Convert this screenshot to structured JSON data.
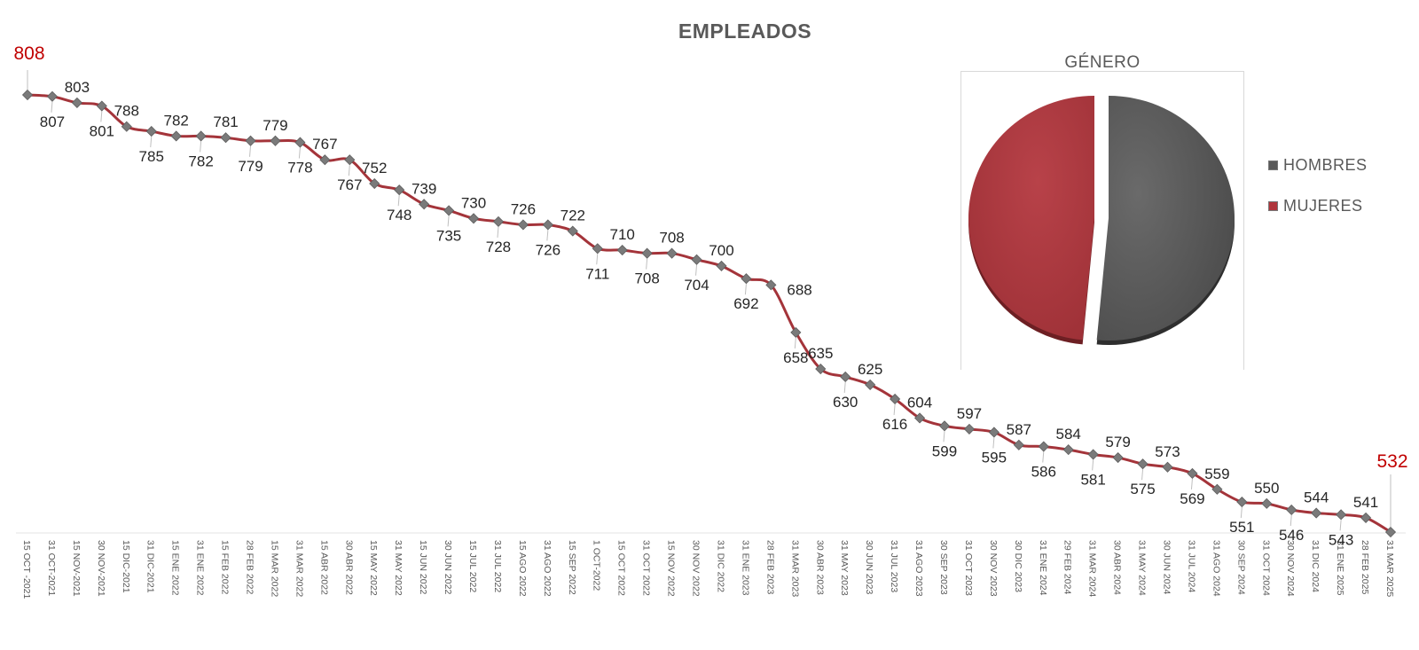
{
  "colors": {
    "line": "#a4343a",
    "marker": "#7a7a7a",
    "label": "#262626",
    "highlight": "#c00000",
    "title": "#595959",
    "hombres": "#595959",
    "mujeres": "#b0353c"
  },
  "chart_data": [
    {
      "type": "line",
      "title": "EMPLEADOS",
      "xlabel": "",
      "ylabel": "",
      "categories": [
        "15 OCT -2021",
        "31 OCT-2021",
        "15 NOV-2021",
        "30 NOV-2021",
        "15 DIC-2021",
        "31 DIC-2021",
        "15 ENE 2022",
        "31 ENE 2022",
        "15 FEB 2022",
        "28 FEB 2022",
        "15 MAR 2022",
        "31 MAR 2022",
        "15 ABR 2022",
        "30 ABR 2022",
        "15 MAY 2022",
        "31 MAY 2022",
        "15 JUN 2022",
        "30 JUN 2022",
        "15 JUL 2022",
        "31 JUL 2022",
        "15 AGO 2022",
        "31 AGO 2022",
        "15 SEP 2022",
        "1 OCT-2022",
        "15 OCT 2022",
        "31 OCT 2022",
        "15 NOV 2022",
        "30 NOV 2022",
        "31 DIC 2022",
        "31 ENE 2023",
        "28 FEB 2023",
        "31 MAR 2023",
        "30 ABR 2023",
        "31 MAY 2023",
        "30 JUN 2023",
        "31 JUL 2023",
        "31 AGO 2023",
        "30 SEP 2023",
        "31 OCT 2023",
        "30 NOV 2023",
        "30 DIC 2023",
        "31 ENE 2024",
        "29 FEB 2024",
        "31 MAR 2024",
        "30 ABR 2024",
        "31 MAY 2024",
        "30 JUN 2024",
        "31 JUL 2024",
        "31 AGO 2024",
        "30 SEP 2024",
        "31 OCT 2024",
        "30 NOV 2024",
        "31 DIC 2024",
        "31 ENE 2025",
        "28 FEB 2025",
        "31 MAR 2025"
      ],
      "series": [
        {
          "values": [
            808,
            807,
            803,
            801,
            788,
            785,
            782,
            782,
            781,
            779,
            779,
            778,
            767,
            767,
            752,
            748,
            739,
            735,
            730,
            728,
            726,
            726,
            722,
            711,
            710,
            708,
            708,
            704,
            700,
            692,
            688,
            658,
            635,
            630,
            625,
            616,
            604,
            599,
            597,
            595,
            587,
            586,
            584,
            581,
            579,
            575,
            573,
            569,
            559,
            551,
            550,
            546,
            544,
            543,
            541,
            532
          ]
        }
      ],
      "ylim": [
        530,
        810
      ],
      "grid": false,
      "legend": "none"
    },
    {
      "type": "pie",
      "title": "GÉNERO",
      "labels": [
        "HOMBRES",
        "MUJERES"
      ],
      "values": [
        51.5,
        48.5
      ],
      "legend": "right"
    }
  ],
  "titles": {
    "main": "EMPLEADOS",
    "pie": "GÉNERO"
  },
  "legend": [
    {
      "label": "HOMBRES",
      "color": "#595959"
    },
    {
      "label": "MUJERES",
      "color": "#b0353c"
    }
  ]
}
